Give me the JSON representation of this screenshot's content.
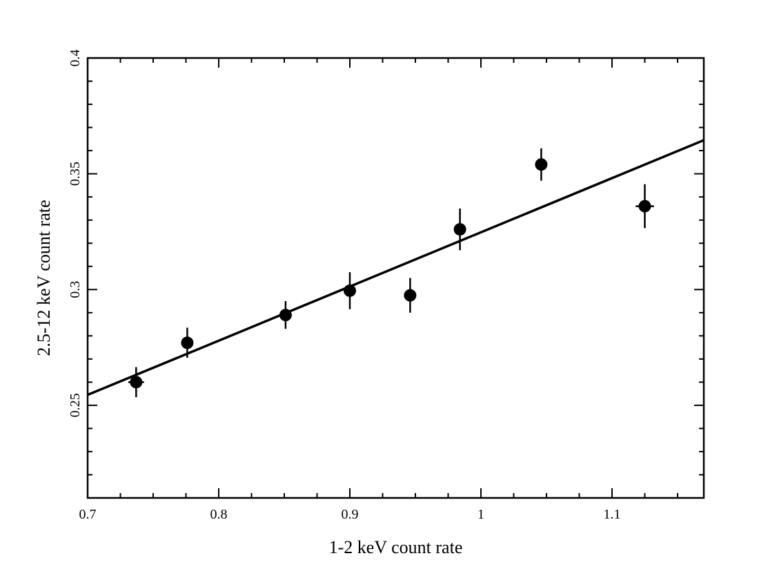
{
  "chart_data": {
    "type": "scatter",
    "title": "",
    "xlabel": "1-2 keV count rate",
    "ylabel": "2.5-12 keV count rate",
    "xlim": [
      0.7,
      1.17
    ],
    "ylim": [
      0.21,
      0.4
    ],
    "x_major_ticks": [
      0.7,
      0.8,
      0.9,
      1.0,
      1.1
    ],
    "x_tick_labels": [
      "0.7",
      "0.8",
      "0.9",
      "1",
      "1.1"
    ],
    "y_major_ticks": [
      0.25,
      0.3,
      0.35,
      0.4
    ],
    "y_tick_labels": [
      "0.25",
      "0.3",
      "0.35",
      "0.4"
    ],
    "x_minor_step": 0.025,
    "y_minor_step": 0.01,
    "grid": false,
    "series": [
      {
        "name": "data",
        "x": [
          0.737,
          0.776,
          0.851,
          0.9,
          0.946,
          0.984,
          1.046,
          1.125
        ],
        "y": [
          0.26,
          0.277,
          0.289,
          0.2995,
          0.2975,
          0.326,
          0.354,
          0.336
        ],
        "x_err": [
          0.006,
          0.0,
          0.0,
          0.0,
          0.0,
          0.0,
          0.0,
          0.007
        ],
        "y_err": [
          0.0065,
          0.0065,
          0.006,
          0.008,
          0.0075,
          0.009,
          0.007,
          0.0095
        ]
      },
      {
        "name": "linear fit",
        "type": "line",
        "x": [
          0.7,
          1.17
        ],
        "y": [
          0.2545,
          0.3645
        ]
      }
    ]
  }
}
